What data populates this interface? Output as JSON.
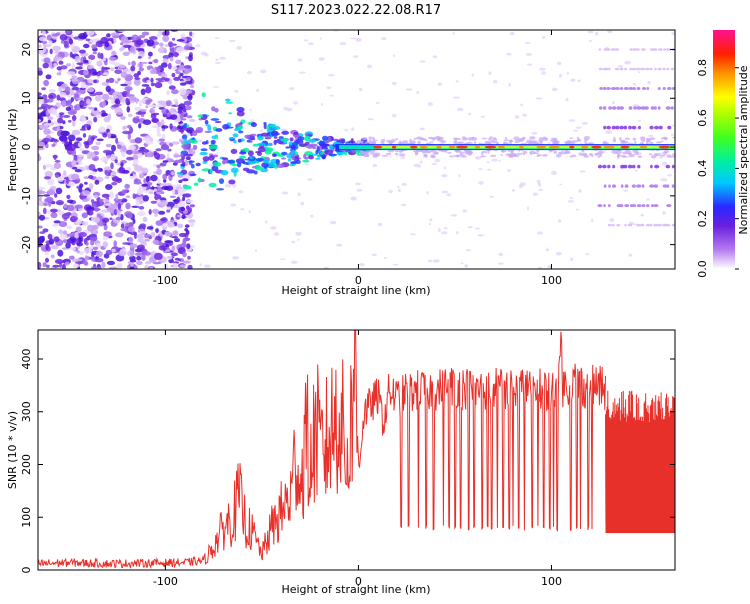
{
  "title": "S117.2023.022.22.08.R17",
  "chart_data": [
    {
      "type": "heatmap",
      "xlabel": "Height of straight line (km)",
      "ylabel": "Frequency (Hz)",
      "xlim": [
        -166,
        164
      ],
      "ylim": [
        -25,
        24
      ],
      "x_ticks": [
        "-100",
        "0",
        "100"
      ],
      "y_ticks": [
        "20",
        "10",
        "0",
        "-10",
        "-20"
      ],
      "colorbar": {
        "label": "Normalized spectral amplitude",
        "ticks": [
          "0.0",
          "0.2",
          "0.4",
          "0.6",
          "0.8"
        ],
        "range": [
          0,
          0.95
        ],
        "colors": [
          "#ffffff",
          "#8a2be2",
          "#3a1fff",
          "#00d8ff",
          "#00f070",
          "#80ff00",
          "#ffff00",
          "#ff8000",
          "#ff2000",
          "#ff00a0"
        ]
      },
      "features": {
        "carrier_frequency_hz": 0,
        "carrier_start_km": 10,
        "harmonics_start_km": 125,
        "harmonic_freqs_hz": [
          -16,
          -12,
          -8,
          -4,
          4,
          8,
          12,
          16,
          20
        ]
      }
    },
    {
      "type": "line",
      "xlabel": "Height of straight line (km)",
      "ylabel": "SNR (10 * v/v)",
      "xlim": [
        -166,
        164
      ],
      "ylim": [
        0,
        455
      ],
      "x_ticks": [
        "-100",
        "0",
        "100"
      ],
      "y_ticks": [
        "0",
        "100",
        "200",
        "300",
        "400"
      ],
      "series": [
        {
          "color": "#e8302a",
          "x": [
            -166,
            -150,
            -130,
            -110,
            -90,
            -80,
            -75,
            -70,
            -65,
            -62,
            -58,
            -55,
            -50,
            -45,
            -40,
            -35,
            -32,
            -30,
            -27,
            -25,
            -22,
            -20,
            -15,
            -10,
            -6,
            -4,
            -2,
            0,
            3,
            6,
            10,
            13,
            16,
            20,
            24,
            30,
            40,
            50,
            60,
            70,
            80,
            90,
            100,
            104,
            105,
            106,
            108,
            112,
            118,
            124,
            128
          ],
          "values": [
            12,
            14,
            12,
            13,
            14,
            18,
            45,
            80,
            100,
            140,
            85,
            70,
            30,
            80,
            110,
            140,
            230,
            150,
            270,
            180,
            280,
            220,
            250,
            310,
            200,
            270,
            400,
            190,
            300,
            310,
            330,
            280,
            340,
            325,
            335,
            340,
            340,
            350,
            340,
            345,
            340,
            345,
            340,
            350,
            450,
            345,
            350,
            360,
            345,
            350,
            340
          ],
          "dropouts_x": [
            22,
            26,
            31,
            35,
            39,
            44,
            47,
            50,
            53,
            57,
            60,
            64,
            67,
            69,
            72,
            75,
            78,
            80,
            83,
            86,
            90,
            93,
            96,
            99,
            101,
            103,
            110,
            113,
            115,
            119,
            121
          ],
          "dropout_floor": 75,
          "band": {
            "x_start": 128,
            "x_end": 164,
            "low": 70,
            "high": 340
          }
        }
      ]
    }
  ]
}
